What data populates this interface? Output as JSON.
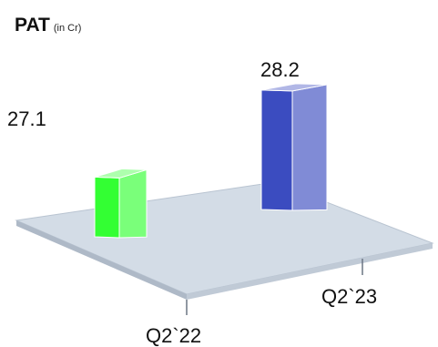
{
  "chart_data": {
    "type": "bar",
    "title": "PAT",
    "subtitle": "(in Cr)",
    "categories": [
      "Q2`22",
      "Q2`23"
    ],
    "series": [
      {
        "values": [
          27.1,
          28.2
        ],
        "colors": [
          "#33ff33",
          "#3b4cc0"
        ]
      }
    ],
    "data_labels": [
      "27.1",
      "28.2"
    ],
    "ylim": [
      26,
      28.6
    ],
    "grid": false,
    "legend": "none",
    "style": "3d"
  }
}
